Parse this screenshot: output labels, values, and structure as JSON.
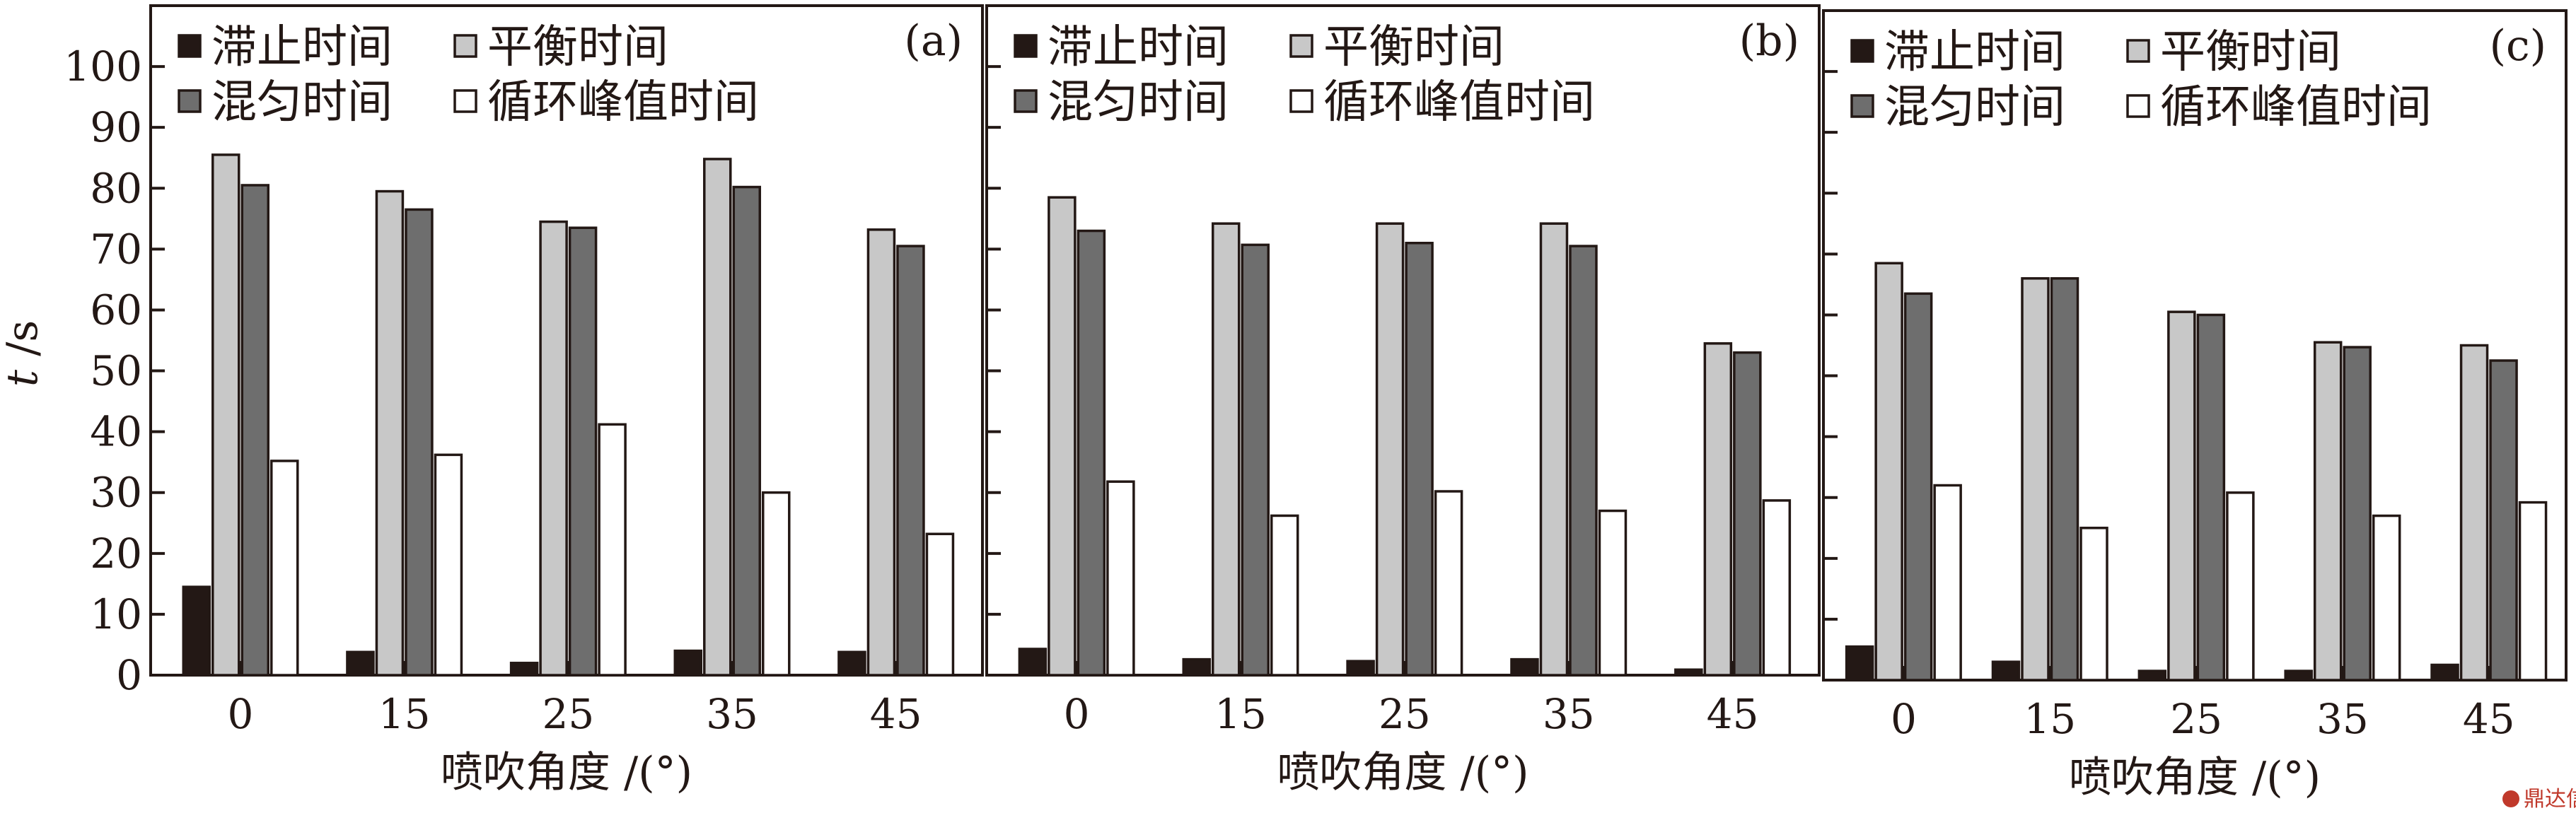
{
  "figure": {
    "ylabel_italic": "t",
    "ylabel_unit": " /s",
    "xlabel": "喷吹角度 /(°)",
    "watermark": "鼎达信"
  },
  "colors": {
    "stagnation": "#231815",
    "balance": "#c8c8c8",
    "mixing": "#6e6e6e",
    "cycle_peak": "#ffffff",
    "axis": "#231815"
  },
  "chart_data": [
    {
      "type": "bar",
      "panel": "(a)",
      "categories": [
        "0",
        "15",
        "25",
        "35",
        "45"
      ],
      "xlabel": "喷吹角度 /(°)",
      "ylabel": "t /s",
      "ylim": [
        0,
        110
      ],
      "yticks": [
        "0",
        "10",
        "20",
        "30",
        "40",
        "50",
        "60",
        "70",
        "80",
        "90",
        "100"
      ],
      "legend": [
        "滞止时间",
        "平衡时间",
        "混匀时间",
        "循环峰值时间"
      ],
      "series": [
        {
          "name": "滞止时间",
          "color_key": "stagnation",
          "values": [
            14.5,
            3.8,
            2.0,
            4.0,
            3.8
          ]
        },
        {
          "name": "平衡时间",
          "color_key": "balance",
          "values": [
            85.5,
            79.5,
            74.5,
            84.8,
            73.2
          ]
        },
        {
          "name": "混匀时间",
          "color_key": "mixing",
          "values": [
            80.5,
            76.5,
            73.5,
            80.2,
            70.5
          ]
        },
        {
          "name": "循环峰值时间",
          "color_key": "cycle_peak",
          "values": [
            35.2,
            36.2,
            41.2,
            30.0,
            23.2
          ]
        }
      ]
    },
    {
      "type": "bar",
      "panel": "(b)",
      "categories": [
        "0",
        "15",
        "25",
        "35",
        "45"
      ],
      "xlabel": "喷吹角度 /(°)",
      "ylim": [
        0,
        110
      ],
      "legend": [
        "滞止时间",
        "平衡时间",
        "混匀时间",
        "循环峰值时间"
      ],
      "series": [
        {
          "name": "滞止时间",
          "color_key": "stagnation",
          "values": [
            4.3,
            2.6,
            2.3,
            2.6,
            0.9
          ]
        },
        {
          "name": "平衡时间",
          "color_key": "balance",
          "values": [
            78.5,
            74.2,
            74.2,
            74.2,
            54.5
          ]
        },
        {
          "name": "混匀时间",
          "color_key": "mixing",
          "values": [
            73.0,
            70.7,
            71.0,
            70.5,
            53.0
          ]
        },
        {
          "name": "循环峰值时间",
          "color_key": "cycle_peak",
          "values": [
            31.8,
            26.2,
            30.2,
            27.0,
            28.7
          ]
        }
      ]
    },
    {
      "type": "bar",
      "panel": "(c)",
      "categories": [
        "0",
        "15",
        "25",
        "35",
        "45"
      ],
      "xlabel": "喷吹角度 /(°)",
      "ylim": [
        0,
        110
      ],
      "legend": [
        "滞止时间",
        "平衡时间",
        "混匀时间",
        "循环峰值时间"
      ],
      "series": [
        {
          "name": "滞止时间",
          "color_key": "stagnation",
          "values": [
            5.5,
            3.0,
            1.5,
            1.5,
            2.5
          ]
        },
        {
          "name": "平衡时间",
          "color_key": "balance",
          "values": [
            68.5,
            66.0,
            60.5,
            55.5,
            55.0
          ]
        },
        {
          "name": "混匀时间",
          "color_key": "mixing",
          "values": [
            63.5,
            66.0,
            60.0,
            54.7,
            52.5
          ]
        },
        {
          "name": "循环峰值时间",
          "color_key": "cycle_peak",
          "values": [
            32.0,
            25.0,
            30.8,
            27.0,
            29.2
          ]
        }
      ]
    }
  ]
}
